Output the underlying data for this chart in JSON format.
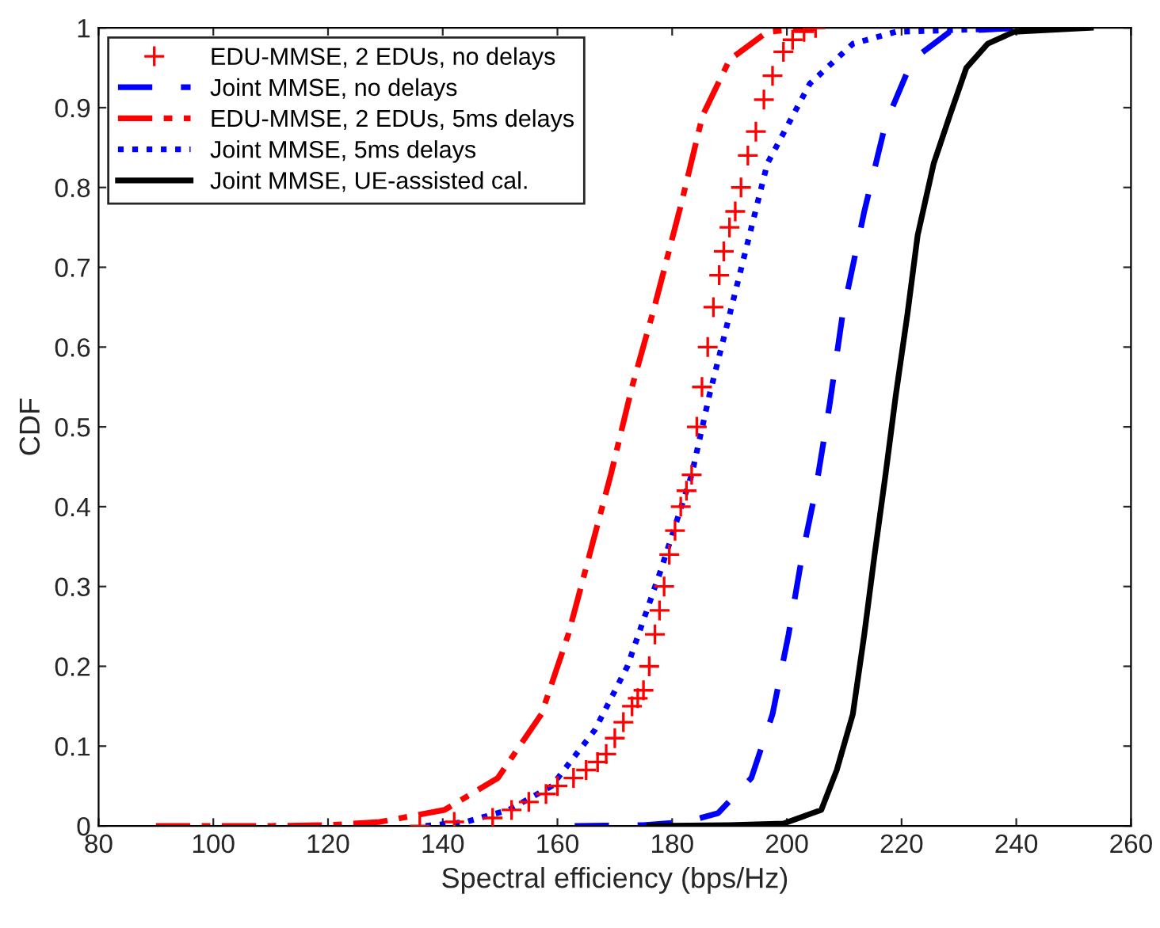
{
  "chart_data": {
    "type": "line",
    "xlabel": "Spectral efficiency (bps/Hz)",
    "ylabel": "CDF",
    "xlim": [
      80,
      260
    ],
    "xticks": [
      80,
      100,
      120,
      140,
      160,
      180,
      200,
      220,
      240,
      260
    ],
    "ylim": [
      0,
      1
    ],
    "yticks": [
      0,
      0.1,
      0.2,
      0.3,
      0.4,
      0.5,
      0.6,
      0.7,
      0.8,
      0.9,
      1
    ],
    "grid": false,
    "legend": "top left",
    "series": [
      {
        "name": "EDU-MMSE, 2 EDUs, no delays",
        "type": "scatter",
        "marker": "cross",
        "color": "#ff0000",
        "x": [
          136,
          142,
          148.7,
          152,
          155,
          158,
          160,
          162.8,
          165,
          167,
          168.5,
          170,
          171.5,
          173,
          174,
          175,
          176,
          177,
          177.8,
          178.6,
          179.5,
          180.5,
          181.5,
          182.5,
          183.4,
          184.3,
          185.2,
          186.2,
          187.2,
          188.2,
          189,
          190,
          191,
          192,
          193.2,
          194.6,
          196,
          197.5,
          199.4,
          201,
          203,
          205
        ],
        "values": [
          0,
          0.005,
          0.01,
          0.02,
          0.03,
          0.04,
          0.05,
          0.06,
          0.07,
          0.08,
          0.09,
          0.11,
          0.13,
          0.15,
          0.16,
          0.17,
          0.2,
          0.24,
          0.27,
          0.3,
          0.34,
          0.37,
          0.4,
          0.42,
          0.44,
          0.5,
          0.55,
          0.6,
          0.65,
          0.69,
          0.72,
          0.75,
          0.77,
          0.8,
          0.84,
          0.87,
          0.91,
          0.94,
          0.97,
          0.985,
          0.995,
          1
        ]
      },
      {
        "name": "Joint MMSE, no delays",
        "line_style": "dashed",
        "color": "#0000ff",
        "x": [
          163,
          175,
          182.5,
          188,
          193.8,
          197.5,
          200.3,
          202.7,
          205,
          207.5,
          209.7,
          213.5,
          217.2,
          221.9,
          228.4,
          240
        ],
        "values": [
          0,
          0.001,
          0.005,
          0.016,
          0.06,
          0.14,
          0.24,
          0.34,
          0.42,
          0.53,
          0.64,
          0.77,
          0.88,
          0.96,
          0.995,
          1
        ]
      },
      {
        "name": "EDU-MMSE, 2 EDUs, 5ms delays",
        "line_style": "dashdot",
        "color": "#ff0000",
        "x": [
          90,
          110,
          120,
          129,
          140.3,
          149.6,
          157.2,
          161.9,
          165.6,
          169.3,
          173,
          176.9,
          181.6,
          185.3,
          190,
          196.6,
          205
        ],
        "values": [
          0,
          0,
          0.001,
          0.005,
          0.02,
          0.06,
          0.14,
          0.24,
          0.34,
          0.44,
          0.55,
          0.65,
          0.78,
          0.89,
          0.96,
          0.995,
          1
        ]
      },
      {
        "name": "Joint MMSE, 5ms delays",
        "line_style": "dotted",
        "color": "#0000ff",
        "x": [
          137,
          144,
          151.5,
          159,
          166.5,
          172.2,
          178,
          183.4,
          186.5,
          190,
          196.6,
          204,
          211.5,
          219,
          242
        ],
        "values": [
          0,
          0.005,
          0.02,
          0.05,
          0.12,
          0.2,
          0.32,
          0.44,
          0.54,
          0.64,
          0.83,
          0.93,
          0.98,
          0.995,
          1
        ]
      },
      {
        "name": "Joint MMSE, UE-assisted cal.",
        "line_style": "solid",
        "color": "#000000",
        "x": [
          176,
          190,
          199.4,
          206,
          208.7,
          211.5,
          213.5,
          215.3,
          217.2,
          219,
          221,
          222.8,
          225.6,
          228.4,
          231.3,
          235,
          239.6,
          253
        ],
        "values": [
          0,
          0.001,
          0.003,
          0.02,
          0.07,
          0.14,
          0.24,
          0.34,
          0.44,
          0.54,
          0.64,
          0.74,
          0.83,
          0.89,
          0.95,
          0.98,
          0.995,
          1
        ]
      }
    ]
  }
}
